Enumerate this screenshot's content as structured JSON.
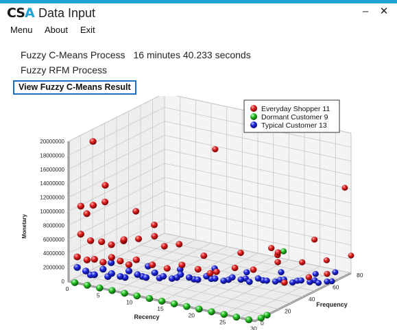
{
  "app": {
    "logo_main": "CS",
    "logo_accent": "A",
    "title": "Data Input",
    "minimize_glyph": "–",
    "close_glyph": "✕"
  },
  "menu": {
    "items": [
      "Menu",
      "About",
      "Exit"
    ]
  },
  "status": {
    "fcm_label": "Fuzzy C-Means Process",
    "fcm_time": "16 minutes 40.233 seconds",
    "rfm_label": "Fuzzy RFM Process"
  },
  "view_button": "View Fuzzy C-Means Result",
  "chart_data": {
    "type": "scatter",
    "projection": "3d",
    "title": "",
    "axes": {
      "x": {
        "label": "Recency",
        "range": [
          0,
          30
        ],
        "ticks": [
          0,
          5,
          10,
          15,
          20,
          25,
          30
        ]
      },
      "y": {
        "label": "Monetary",
        "range": [
          0,
          20000000
        ],
        "ticks": [
          0,
          2000000,
          4000000,
          6000000,
          8000000,
          10000000,
          12000000,
          14000000,
          16000000,
          18000000,
          20000000
        ]
      },
      "z": {
        "label": "Frequency",
        "range": [
          0,
          80
        ],
        "ticks": [
          0,
          20,
          40,
          60,
          80
        ]
      }
    },
    "grid": true,
    "legend": "top-right",
    "series": [
      {
        "name": "Everyday Shopper 11",
        "color": "#d81818",
        "points": [
          [
            2,
            19500000,
            10
          ],
          [
            1,
            10500000,
            5
          ],
          [
            1,
            9000000,
            10
          ],
          [
            3,
            11000000,
            5
          ],
          [
            3,
            13000000,
            15
          ],
          [
            2,
            10000000,
            20
          ],
          [
            6,
            9000000,
            25
          ],
          [
            8,
            7000000,
            30
          ],
          [
            1,
            6500000,
            5
          ],
          [
            2,
            5500000,
            8
          ],
          [
            3,
            5200000,
            12
          ],
          [
            4,
            4700000,
            15
          ],
          [
            6,
            5800000,
            15
          ],
          [
            5,
            5000000,
            20
          ],
          [
            7,
            5500000,
            22
          ],
          [
            9,
            6000000,
            25
          ],
          [
            10,
            4500000,
            28
          ],
          [
            12,
            5000000,
            30
          ],
          [
            1,
            3500000,
            2
          ],
          [
            2,
            3000000,
            5
          ],
          [
            3,
            3200000,
            6
          ],
          [
            4,
            2800000,
            8
          ],
          [
            5,
            3500000,
            10
          ],
          [
            6,
            3000000,
            12
          ],
          [
            7,
            2500000,
            14
          ],
          [
            8,
            3300000,
            15
          ],
          [
            10,
            2700000,
            18
          ],
          [
            12,
            2400000,
            20
          ],
          [
            14,
            3100000,
            22
          ],
          [
            16,
            2600000,
            25
          ],
          [
            18,
            2200000,
            30
          ],
          [
            20,
            2700000,
            35
          ],
          [
            22,
            2400000,
            40
          ],
          [
            24,
            3000000,
            50
          ],
          [
            26,
            2500000,
            60
          ],
          [
            28,
            2300000,
            70
          ],
          [
            30,
            2500000,
            80
          ],
          [
            12,
            16000000,
            60
          ],
          [
            29,
            12000000,
            80
          ],
          [
            25,
            5000000,
            45
          ],
          [
            27,
            5500000,
            65
          ],
          [
            22,
            4200000,
            55
          ],
          [
            15,
            3500000,
            35
          ],
          [
            19,
            3800000,
            45
          ],
          [
            23,
            3400000,
            55
          ],
          [
            17,
            1800000,
            30
          ],
          [
            27,
            1500000,
            40
          ],
          [
            29,
            1800000,
            50
          ],
          [
            30,
            1600000,
            60
          ]
        ]
      },
      {
        "name": "Dormant Customer 9",
        "color": "#1fb51f",
        "points": [
          [
            1,
            0,
            0
          ],
          [
            3,
            0,
            0
          ],
          [
            5,
            0,
            0
          ],
          [
            7,
            0,
            0
          ],
          [
            9,
            0,
            0
          ],
          [
            11,
            0,
            0
          ],
          [
            13,
            0,
            0
          ],
          [
            15,
            0,
            0
          ],
          [
            17,
            0,
            0
          ],
          [
            19,
            0,
            0
          ],
          [
            21,
            0,
            0
          ],
          [
            23,
            0,
            0
          ],
          [
            25,
            0,
            0
          ],
          [
            27,
            0,
            0
          ],
          [
            29,
            0,
            0
          ],
          [
            30,
            0,
            5
          ],
          [
            30,
            0,
            10
          ],
          [
            23,
            3500000,
            60
          ]
        ]
      },
      {
        "name": "Typical Customer 13",
        "color": "#1a22d0",
        "points": [
          [
            1,
            2000000,
            2
          ],
          [
            2,
            1500000,
            4
          ],
          [
            3,
            1000000,
            6
          ],
          [
            4,
            1800000,
            8
          ],
          [
            5,
            1200000,
            10
          ],
          [
            6,
            800000,
            12
          ],
          [
            7,
            1600000,
            14
          ],
          [
            8,
            1100000,
            16
          ],
          [
            9,
            700000,
            18
          ],
          [
            10,
            1400000,
            20
          ],
          [
            11,
            900000,
            22
          ],
          [
            12,
            600000,
            24
          ],
          [
            13,
            1200000,
            26
          ],
          [
            14,
            800000,
            28
          ],
          [
            15,
            500000,
            30
          ],
          [
            16,
            1000000,
            32
          ],
          [
            17,
            700000,
            34
          ],
          [
            18,
            400000,
            36
          ],
          [
            19,
            900000,
            38
          ],
          [
            20,
            600000,
            40
          ],
          [
            21,
            300000,
            42
          ],
          [
            22,
            800000,
            44
          ],
          [
            23,
            500000,
            46
          ],
          [
            24,
            400000,
            48
          ],
          [
            25,
            700000,
            50
          ],
          [
            26,
            300000,
            52
          ],
          [
            27,
            600000,
            54
          ],
          [
            28,
            400000,
            56
          ],
          [
            29,
            300000,
            58
          ],
          [
            30,
            500000,
            60
          ],
          [
            2,
            600000,
            8
          ],
          [
            4,
            400000,
            12
          ],
          [
            6,
            300000,
            16
          ],
          [
            8,
            500000,
            20
          ],
          [
            10,
            300000,
            24
          ],
          [
            12,
            400000,
            28
          ],
          [
            14,
            200000,
            32
          ],
          [
            16,
            300000,
            36
          ],
          [
            18,
            200000,
            40
          ],
          [
            20,
            400000,
            44
          ],
          [
            22,
            200000,
            48
          ],
          [
            24,
            300000,
            52
          ],
          [
            26,
            200000,
            56
          ],
          [
            28,
            300000,
            60
          ],
          [
            30,
            200000,
            64
          ],
          [
            3,
            1500000,
            20
          ],
          [
            7,
            900000,
            30
          ],
          [
            11,
            700000,
            36
          ],
          [
            15,
            900000,
            44
          ],
          [
            19,
            600000,
            50
          ],
          [
            23,
            700000,
            58
          ],
          [
            27,
            500000,
            66
          ],
          [
            29,
            600000,
            72
          ]
        ]
      }
    ]
  }
}
